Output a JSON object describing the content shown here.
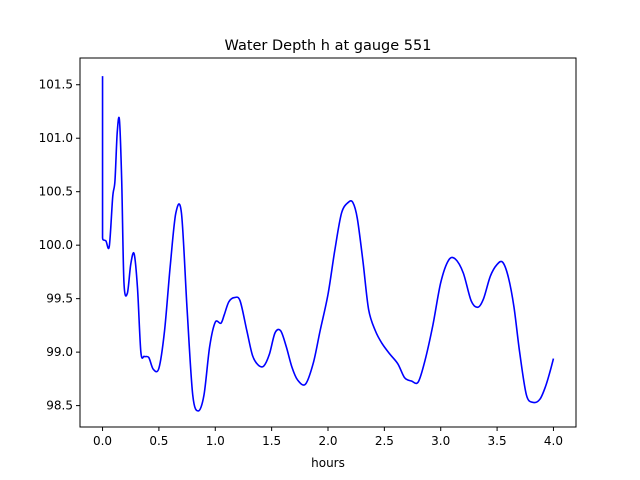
{
  "chart_data": {
    "type": "line",
    "title": "Water Depth h at gauge 551",
    "xlabel": "hours",
    "ylabel": "",
    "xlim": [
      -0.2,
      4.2
    ],
    "ylim": [
      98.3,
      101.75
    ],
    "grid": false,
    "xticks": [
      0.0,
      0.5,
      1.0,
      1.5,
      2.0,
      2.5,
      3.0,
      3.5,
      4.0
    ],
    "xtick_labels": [
      "0.0",
      "0.5",
      "1.0",
      "1.5",
      "2.0",
      "2.5",
      "3.0",
      "3.5",
      "4.0"
    ],
    "yticks": [
      98.5,
      99.0,
      99.5,
      100.0,
      100.5,
      101.0,
      101.5
    ],
    "ytick_labels": [
      "98.5",
      "99.0",
      "99.5",
      "100.0",
      "100.5",
      "101.0",
      "101.5"
    ],
    "series": [
      {
        "color": "#0000ff",
        "x": [
          0.0,
          0.0,
          0.005,
          0.03,
          0.06,
          0.09,
          0.11,
          0.13,
          0.15,
          0.17,
          0.19,
          0.22,
          0.25,
          0.28,
          0.31,
          0.34,
          0.37,
          0.41,
          0.45,
          0.5,
          0.55,
          0.6,
          0.65,
          0.7,
          0.75,
          0.8,
          0.85,
          0.9,
          0.95,
          1.0,
          1.05,
          1.08,
          1.12,
          1.17,
          1.22,
          1.28,
          1.33,
          1.38,
          1.43,
          1.48,
          1.53,
          1.58,
          1.63,
          1.68,
          1.73,
          1.8,
          1.87,
          1.93,
          2.0,
          2.06,
          2.12,
          2.18,
          2.22,
          2.26,
          2.31,
          2.36,
          2.42,
          2.48,
          2.55,
          2.62,
          2.68,
          2.74,
          2.8,
          2.86,
          2.93,
          3.0,
          3.07,
          3.13,
          3.2,
          3.27,
          3.33,
          3.38,
          3.44,
          3.5,
          3.55,
          3.6,
          3.65,
          3.7,
          3.76,
          3.82,
          3.88,
          3.93,
          3.97,
          4.0
        ],
        "y": [
          101.58,
          100.07,
          100.05,
          100.04,
          99.99,
          100.45,
          100.6,
          101.05,
          101.17,
          100.6,
          99.65,
          99.55,
          99.82,
          99.92,
          99.6,
          99.0,
          98.96,
          98.95,
          98.84,
          98.85,
          99.2,
          99.8,
          100.3,
          100.3,
          99.4,
          98.6,
          98.45,
          98.6,
          99.05,
          99.28,
          99.27,
          99.35,
          99.47,
          99.51,
          99.48,
          99.2,
          98.97,
          98.88,
          98.87,
          98.98,
          99.18,
          99.2,
          99.05,
          98.86,
          98.74,
          98.7,
          98.9,
          99.2,
          99.54,
          99.95,
          100.3,
          100.4,
          100.4,
          100.25,
          99.85,
          99.4,
          99.2,
          99.08,
          98.98,
          98.89,
          98.76,
          98.73,
          98.72,
          98.92,
          99.25,
          99.65,
          99.86,
          99.87,
          99.74,
          99.48,
          99.42,
          99.5,
          99.71,
          99.82,
          99.84,
          99.7,
          99.42,
          99.0,
          98.6,
          98.53,
          98.56,
          98.68,
          98.82,
          98.94
        ]
      }
    ]
  }
}
